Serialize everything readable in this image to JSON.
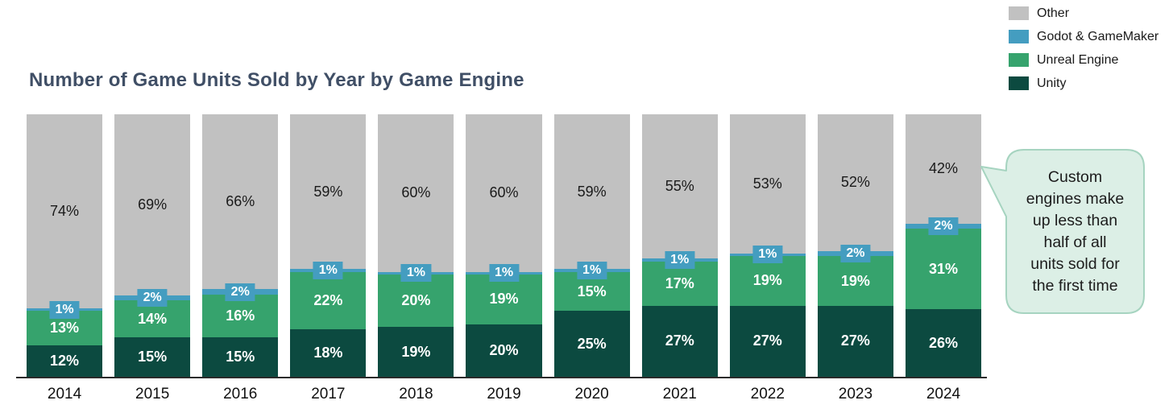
{
  "title": "Number of Game Units Sold by Year by Game Engine",
  "legend": {
    "items": [
      {
        "label": "Other",
        "color": "#C1C1C1"
      },
      {
        "label": "Godot & GameMaker",
        "color": "#449DC0"
      },
      {
        "label": "Unreal Engine",
        "color": "#36A36D"
      },
      {
        "label": "Unity",
        "color": "#0C4A40"
      }
    ]
  },
  "callout": {
    "lines": [
      "Custom",
      "engines make",
      "up less than",
      "half of all",
      "units sold for",
      "the first time"
    ],
    "fill": "#DCEFE6",
    "border": "#A6D4C0"
  },
  "chart_data": {
    "type": "bar",
    "stacked": true,
    "value_format": "percent",
    "title": "Number of Game Units Sold by Year by Game Engine",
    "xlabel": "",
    "ylabel": "",
    "ylim": [
      0,
      100
    ],
    "grid": false,
    "legend_position": "top-right",
    "categories": [
      "2014",
      "2015",
      "2016",
      "2017",
      "2018",
      "2019",
      "2020",
      "2021",
      "2022",
      "2023",
      "2024"
    ],
    "series": [
      {
        "name": "Unity",
        "color": "#0C4A40",
        "label_style": "inside-light",
        "values": [
          12,
          15,
          15,
          18,
          19,
          20,
          25,
          27,
          27,
          27,
          26
        ]
      },
      {
        "name": "Unreal Engine",
        "color": "#36A36D",
        "label_style": "inside-light",
        "values": [
          13,
          14,
          16,
          22,
          20,
          19,
          15,
          17,
          19,
          19,
          31
        ]
      },
      {
        "name": "Godot & GameMaker",
        "color": "#449DC0",
        "label_style": "badge",
        "values": [
          1,
          2,
          2,
          1,
          1,
          1,
          1,
          1,
          1,
          2,
          2
        ]
      },
      {
        "name": "Other",
        "color": "#C1C1C1",
        "label_style": "inside-dark",
        "values": [
          74,
          69,
          66,
          59,
          60,
          60,
          59,
          55,
          53,
          52,
          42
        ]
      }
    ]
  }
}
